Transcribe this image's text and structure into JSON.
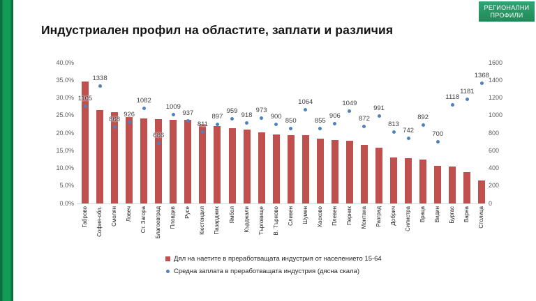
{
  "title": "Индустриален профил на областите, заплати и различия",
  "badge": {
    "line1": "РЕГИОНАЛНИ",
    "line2": "ПРОФИЛИ"
  },
  "chart_data": {
    "type": "bar",
    "subtype": "combo-bar-and-scatter",
    "title": "Индустриален профил на областите, заплати и различия",
    "grid": false,
    "legend_position": "bottom",
    "categories": [
      "Габрово",
      "София-обл.",
      "Смолян",
      "Ловеч",
      "Ст. Загора",
      "Благоевград",
      "Пловдив",
      "Русе",
      "Кюстендил",
      "Пазарджик",
      "Ямбол",
      "Кърджали",
      "Търговище",
      "В. Търново",
      "Сливен",
      "Шумен",
      "Хасково",
      "Плевен",
      "Перник",
      "Монтана",
      "Разград",
      "Добрич",
      "Силистра",
      "Враца",
      "Видин",
      "Бургас",
      "Варна",
      "Столица"
    ],
    "series": [
      {
        "name": "Дял на наетите в преработващата индустрия от населението 15-64",
        "type": "bar",
        "axis": "left",
        "color": "#C0504D",
        "values": [
          34.6,
          26.6,
          26.0,
          24.5,
          24.2,
          23.9,
          23.8,
          23.7,
          22.6,
          22.0,
          21.3,
          21.0,
          20.2,
          19.7,
          19.5,
          19.4,
          18.4,
          18.1,
          17.9,
          16.6,
          15.9,
          13.0,
          12.9,
          12.4,
          10.7,
          10.4,
          9.0,
          6.6
        ]
      },
      {
        "name": "Средна заплата в преработващата индустрия (дясна скала)",
        "type": "scatter",
        "axis": "right",
        "color": "#4F81BD",
        "data_labels": true,
        "values": [
          1105,
          1338,
          868,
          926,
          1082,
          686,
          1009,
          937,
          811,
          897,
          959,
          918,
          973,
          900,
          850,
          1064,
          855,
          906,
          1049,
          872,
          991,
          813,
          742,
          892,
          700,
          1118,
          1181,
          1368
        ]
      }
    ],
    "left_axis": {
      "min": 0,
      "max": 40,
      "step": 5,
      "format": "percent",
      "tick_labels": [
        "40.0%",
        "35.0%",
        "30.0%",
        "25.0%",
        "20.0%",
        "15.0%",
        "10.0%",
        "5.0%",
        "0.0%"
      ]
    },
    "right_axis": {
      "min": 0,
      "max": 1600,
      "step": 200,
      "tick_labels": [
        "1600",
        "1400",
        "1200",
        "1000",
        "800",
        "600",
        "400",
        "200",
        "0"
      ]
    }
  }
}
